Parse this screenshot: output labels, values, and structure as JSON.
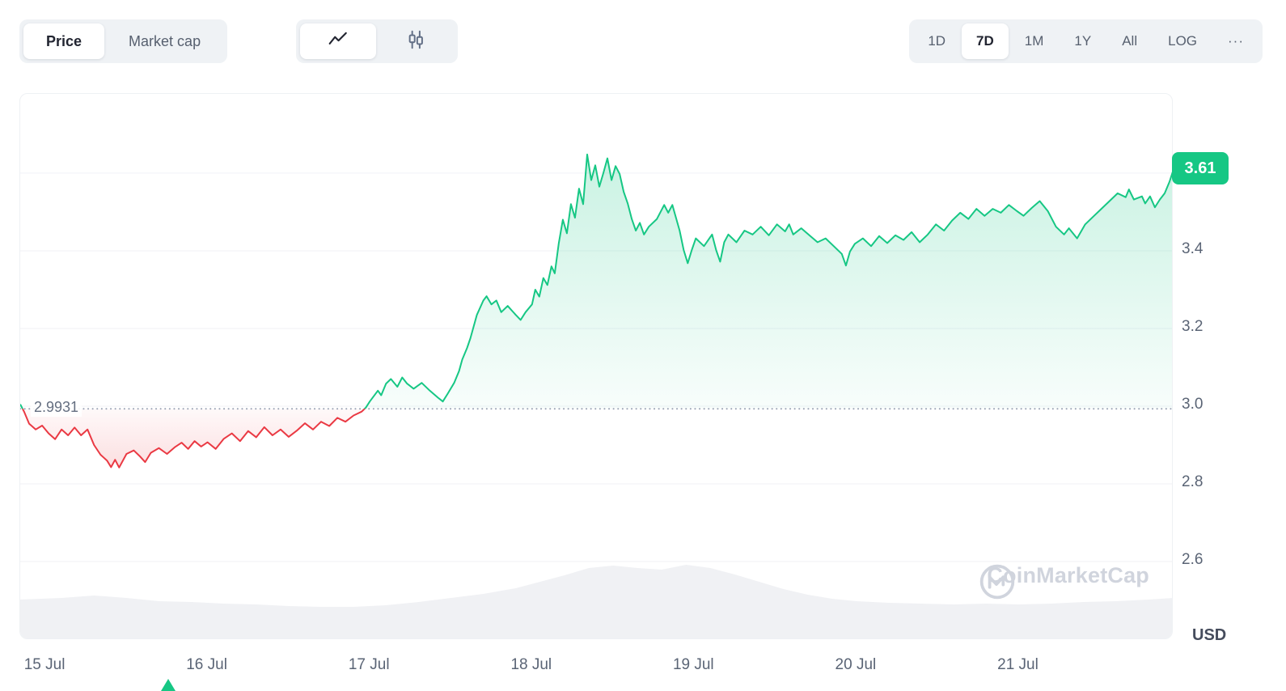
{
  "colors": {
    "green": "#16c784",
    "red": "#ea3943"
  },
  "toolbar": {
    "metric_toggle": {
      "price": "Price",
      "market_cap": "Market cap"
    },
    "chart_type_icons": {
      "line": "line-chart-icon",
      "candles": "candlestick-chart-icon"
    },
    "ranges": {
      "d1": "1D",
      "d7": "7D",
      "m1": "1M",
      "y1": "1Y",
      "all": "All",
      "log": "LOG",
      "more": "···"
    }
  },
  "branding": {
    "watermark": "CoinMarketCap"
  },
  "chart_data": {
    "type": "line",
    "unit": "USD",
    "baseline": 2.9931,
    "baseline_label": "2.9931",
    "last_price": 3.61,
    "last_price_label": "3.61",
    "xlim": [
      -0.155,
      6.955
    ],
    "ylim": [
      2.398,
      3.804
    ],
    "x_ticks": [
      0,
      1,
      2,
      3,
      4,
      5,
      6
    ],
    "x_tick_labels": [
      "15 Jul",
      "16 Jul",
      "17 Jul",
      "18 Jul",
      "19 Jul",
      "20 Jul",
      "21 Jul"
    ],
    "y_ticks": [
      3.4,
      3.2,
      3.0,
      2.8,
      2.6
    ],
    "y_tick_labels": [
      "3.4",
      "3.2",
      "3.0",
      "2.8",
      "2.6"
    ],
    "gridlines": [
      3.6,
      3.4,
      3.2,
      3.0,
      2.8,
      2.6
    ],
    "series": [
      {
        "name": "price",
        "points": [
          [
            -0.155,
            3.005
          ],
          [
            -0.13,
            2.985
          ],
          [
            -0.1,
            2.955
          ],
          [
            -0.06,
            2.94
          ],
          [
            -0.02,
            2.95
          ],
          [
            0.02,
            2.93
          ],
          [
            0.06,
            2.915
          ],
          [
            0.1,
            2.94
          ],
          [
            0.14,
            2.925
          ],
          [
            0.18,
            2.945
          ],
          [
            0.22,
            2.925
          ],
          [
            0.26,
            2.94
          ],
          [
            0.3,
            2.9
          ],
          [
            0.34,
            2.875
          ],
          [
            0.38,
            2.86
          ],
          [
            0.405,
            2.843
          ],
          [
            0.43,
            2.862
          ],
          [
            0.455,
            2.842
          ],
          [
            0.5,
            2.877
          ],
          [
            0.545,
            2.886
          ],
          [
            0.585,
            2.87
          ],
          [
            0.615,
            2.856
          ],
          [
            0.65,
            2.88
          ],
          [
            0.7,
            2.892
          ],
          [
            0.75,
            2.877
          ],
          [
            0.8,
            2.895
          ],
          [
            0.84,
            2.906
          ],
          [
            0.88,
            2.89
          ],
          [
            0.92,
            2.91
          ],
          [
            0.96,
            2.896
          ],
          [
            1.0,
            2.907
          ],
          [
            1.05,
            2.89
          ],
          [
            1.1,
            2.916
          ],
          [
            1.15,
            2.93
          ],
          [
            1.2,
            2.91
          ],
          [
            1.25,
            2.936
          ],
          [
            1.3,
            2.92
          ],
          [
            1.35,
            2.946
          ],
          [
            1.4,
            2.925
          ],
          [
            1.45,
            2.94
          ],
          [
            1.5,
            2.921
          ],
          [
            1.55,
            2.937
          ],
          [
            1.6,
            2.956
          ],
          [
            1.65,
            2.94
          ],
          [
            1.7,
            2.96
          ],
          [
            1.75,
            2.949
          ],
          [
            1.8,
            2.97
          ],
          [
            1.85,
            2.96
          ],
          [
            1.9,
            2.976
          ],
          [
            1.95,
            2.986
          ],
          [
            1.975,
            2.996
          ],
          [
            2.0,
            3.012
          ],
          [
            2.05,
            3.04
          ],
          [
            2.07,
            3.028
          ],
          [
            2.1,
            3.058
          ],
          [
            2.13,
            3.07
          ],
          [
            2.17,
            3.05
          ],
          [
            2.2,
            3.074
          ],
          [
            2.23,
            3.058
          ],
          [
            2.27,
            3.045
          ],
          [
            2.32,
            3.06
          ],
          [
            2.37,
            3.04
          ],
          [
            2.42,
            3.022
          ],
          [
            2.45,
            3.012
          ],
          [
            2.48,
            3.032
          ],
          [
            2.52,
            3.06
          ],
          [
            2.55,
            3.09
          ],
          [
            2.57,
            3.12
          ],
          [
            2.6,
            3.15
          ],
          [
            2.62,
            3.175
          ],
          [
            2.66,
            3.235
          ],
          [
            2.7,
            3.272
          ],
          [
            2.72,
            3.283
          ],
          [
            2.75,
            3.262
          ],
          [
            2.78,
            3.272
          ],
          [
            2.81,
            3.242
          ],
          [
            2.85,
            3.258
          ],
          [
            2.9,
            3.235
          ],
          [
            2.93,
            3.222
          ],
          [
            2.96,
            3.242
          ],
          [
            3.0,
            3.262
          ],
          [
            3.02,
            3.3
          ],
          [
            3.045,
            3.282
          ],
          [
            3.07,
            3.33
          ],
          [
            3.095,
            3.312
          ],
          [
            3.12,
            3.36
          ],
          [
            3.14,
            3.342
          ],
          [
            3.165,
            3.42
          ],
          [
            3.19,
            3.48
          ],
          [
            3.215,
            3.445
          ],
          [
            3.24,
            3.52
          ],
          [
            3.265,
            3.485
          ],
          [
            3.29,
            3.56
          ],
          [
            3.315,
            3.52
          ],
          [
            3.34,
            3.648
          ],
          [
            3.365,
            3.582
          ],
          [
            3.39,
            3.62
          ],
          [
            3.415,
            3.565
          ],
          [
            3.44,
            3.6
          ],
          [
            3.465,
            3.638
          ],
          [
            3.49,
            3.582
          ],
          [
            3.515,
            3.618
          ],
          [
            3.54,
            3.598
          ],
          [
            3.565,
            3.552
          ],
          [
            3.59,
            3.522
          ],
          [
            3.615,
            3.482
          ],
          [
            3.64,
            3.452
          ],
          [
            3.665,
            3.472
          ],
          [
            3.69,
            3.442
          ],
          [
            3.72,
            3.462
          ],
          [
            3.77,
            3.482
          ],
          [
            3.815,
            3.518
          ],
          [
            3.84,
            3.498
          ],
          [
            3.865,
            3.518
          ],
          [
            3.91,
            3.452
          ],
          [
            3.935,
            3.402
          ],
          [
            3.96,
            3.368
          ],
          [
            3.985,
            3.402
          ],
          [
            4.01,
            3.432
          ],
          [
            4.06,
            3.412
          ],
          [
            4.11,
            3.442
          ],
          [
            4.135,
            3.402
          ],
          [
            4.16,
            3.372
          ],
          [
            4.185,
            3.422
          ],
          [
            4.21,
            3.442
          ],
          [
            4.26,
            3.422
          ],
          [
            4.31,
            3.452
          ],
          [
            4.36,
            3.442
          ],
          [
            4.41,
            3.462
          ],
          [
            4.46,
            3.44
          ],
          [
            4.51,
            3.468
          ],
          [
            4.56,
            3.45
          ],
          [
            4.585,
            3.468
          ],
          [
            4.61,
            3.442
          ],
          [
            4.66,
            3.458
          ],
          [
            4.71,
            3.44
          ],
          [
            4.76,
            3.422
          ],
          [
            4.81,
            3.432
          ],
          [
            4.86,
            3.412
          ],
          [
            4.91,
            3.392
          ],
          [
            4.935,
            3.362
          ],
          [
            4.96,
            3.398
          ],
          [
            4.99,
            3.418
          ],
          [
            5.04,
            3.432
          ],
          [
            5.09,
            3.412
          ],
          [
            5.14,
            3.438
          ],
          [
            5.19,
            3.42
          ],
          [
            5.24,
            3.44
          ],
          [
            5.29,
            3.428
          ],
          [
            5.34,
            3.448
          ],
          [
            5.39,
            3.422
          ],
          [
            5.44,
            3.442
          ],
          [
            5.49,
            3.468
          ],
          [
            5.54,
            3.452
          ],
          [
            5.59,
            3.478
          ],
          [
            5.64,
            3.498
          ],
          [
            5.69,
            3.482
          ],
          [
            5.74,
            3.508
          ],
          [
            5.79,
            3.49
          ],
          [
            5.84,
            3.508
          ],
          [
            5.89,
            3.498
          ],
          [
            5.94,
            3.518
          ],
          [
            5.99,
            3.502
          ],
          [
            6.03,
            3.49
          ],
          [
            6.08,
            3.51
          ],
          [
            6.13,
            3.528
          ],
          [
            6.18,
            3.502
          ],
          [
            6.23,
            3.462
          ],
          [
            6.28,
            3.442
          ],
          [
            6.31,
            3.458
          ],
          [
            6.36,
            3.432
          ],
          [
            6.41,
            3.468
          ],
          [
            6.46,
            3.488
          ],
          [
            6.51,
            3.508
          ],
          [
            6.56,
            3.528
          ],
          [
            6.61,
            3.548
          ],
          [
            6.66,
            3.538
          ],
          [
            6.68,
            3.558
          ],
          [
            6.71,
            3.532
          ],
          [
            6.76,
            3.54
          ],
          [
            6.78,
            3.522
          ],
          [
            6.81,
            3.54
          ],
          [
            6.84,
            3.512
          ],
          [
            6.87,
            3.532
          ],
          [
            6.9,
            3.548
          ],
          [
            6.93,
            3.578
          ],
          [
            6.955,
            3.61
          ]
        ]
      }
    ],
    "volume_area": {
      "points": [
        [
          -0.155,
          50
        ],
        [
          0.1,
          52
        ],
        [
          0.3,
          55
        ],
        [
          0.5,
          52
        ],
        [
          0.7,
          48
        ],
        [
          0.9,
          47
        ],
        [
          1.1,
          45
        ],
        [
          1.3,
          44
        ],
        [
          1.5,
          42
        ],
        [
          1.7,
          41
        ],
        [
          1.9,
          41
        ],
        [
          2.1,
          43
        ],
        [
          2.3,
          47
        ],
        [
          2.5,
          52
        ],
        [
          2.7,
          57
        ],
        [
          2.9,
          64
        ],
        [
          3.05,
          72
        ],
        [
          3.2,
          80
        ],
        [
          3.35,
          89
        ],
        [
          3.5,
          92
        ],
        [
          3.65,
          89
        ],
        [
          3.8,
          87
        ],
        [
          3.95,
          93
        ],
        [
          4.1,
          89
        ],
        [
          4.25,
          81
        ],
        [
          4.4,
          72
        ],
        [
          4.55,
          63
        ],
        [
          4.7,
          56
        ],
        [
          4.85,
          51
        ],
        [
          5.0,
          48
        ],
        [
          5.2,
          46
        ],
        [
          5.4,
          45
        ],
        [
          5.6,
          44
        ],
        [
          5.8,
          45
        ],
        [
          6.0,
          44
        ],
        [
          6.2,
          45
        ],
        [
          6.4,
          47
        ],
        [
          6.6,
          48
        ],
        [
          6.8,
          50
        ],
        [
          6.955,
          52
        ]
      ]
    }
  }
}
